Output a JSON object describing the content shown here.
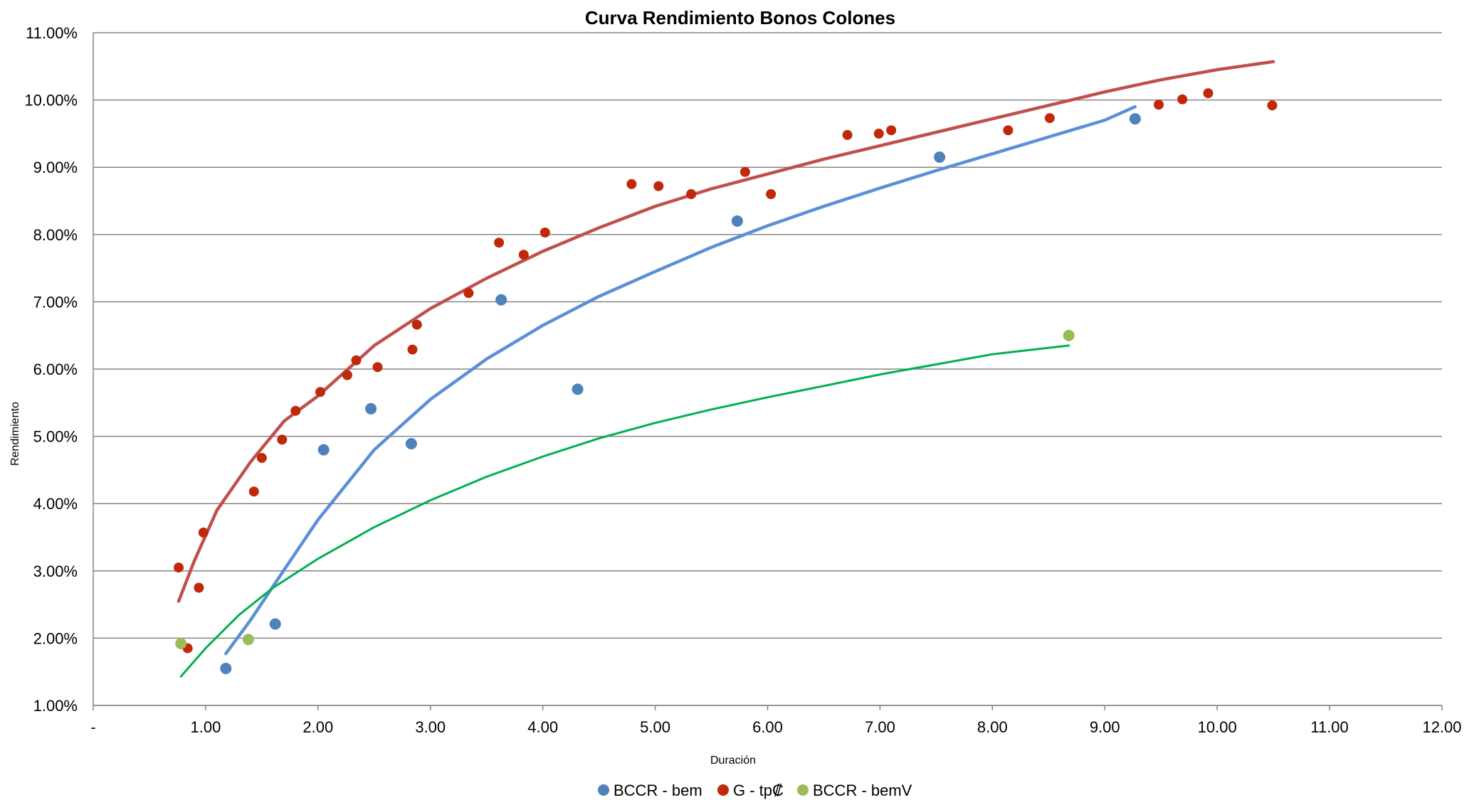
{
  "chart_data": {
    "type": "scatter",
    "title": "Curva Rendimiento Bonos Colones",
    "xlabel": "Duración",
    "ylabel": "Rendimiento",
    "xlim": [
      0,
      12
    ],
    "ylim": [
      0.01,
      0.11
    ],
    "x_ticks": [
      "-",
      "1.00",
      "2.00",
      "3.00",
      "4.00",
      "5.00",
      "6.00",
      "7.00",
      "8.00",
      "9.00",
      "10.00",
      "11.00",
      "12.00"
    ],
    "y_ticks": [
      "1.00%",
      "2.00%",
      "3.00%",
      "4.00%",
      "5.00%",
      "6.00%",
      "7.00%",
      "8.00%",
      "9.00%",
      "10.00%",
      "11.00%"
    ],
    "grid": "horizontal",
    "legend_position": "bottom",
    "series": [
      {
        "name": "BCCR - bem",
        "color": "#4F81BD",
        "trend_color": "#5B8FD6",
        "points": [
          [
            1.18,
            0.0155
          ],
          [
            1.62,
            0.0221
          ],
          [
            2.05,
            0.048
          ],
          [
            2.47,
            0.0541
          ],
          [
            2.83,
            0.0489
          ],
          [
            3.63,
            0.0703
          ],
          [
            4.31,
            0.057
          ],
          [
            5.73,
            0.082
          ],
          [
            7.53,
            0.0915
          ],
          [
            9.27,
            0.0972
          ]
        ],
        "trend": [
          [
            1.18,
            0.0177
          ],
          [
            1.4,
            0.0227
          ],
          [
            1.7,
            0.0302
          ],
          [
            2.0,
            0.0376
          ],
          [
            2.5,
            0.048
          ],
          [
            3.0,
            0.0555
          ],
          [
            3.5,
            0.0615
          ],
          [
            4.0,
            0.0665
          ],
          [
            4.5,
            0.0708
          ],
          [
            5.0,
            0.0745
          ],
          [
            5.5,
            0.0781
          ],
          [
            6.0,
            0.0813
          ],
          [
            6.5,
            0.0842
          ],
          [
            7.0,
            0.0869
          ],
          [
            7.5,
            0.0895
          ],
          [
            8.0,
            0.092
          ],
          [
            8.5,
            0.0945
          ],
          [
            9.0,
            0.097
          ],
          [
            9.27,
            0.099
          ]
        ]
      },
      {
        "name": "G - tp₡",
        "color": "#C0280A",
        "trend_color": "#C0504D",
        "points": [
          [
            0.76,
            0.0305
          ],
          [
            0.84,
            0.0185
          ],
          [
            0.94,
            0.0275
          ],
          [
            0.98,
            0.0357
          ],
          [
            1.43,
            0.0418
          ],
          [
            1.5,
            0.0468
          ],
          [
            1.68,
            0.0495
          ],
          [
            1.8,
            0.0538
          ],
          [
            2.02,
            0.0566
          ],
          [
            2.26,
            0.0591
          ],
          [
            2.34,
            0.0613
          ],
          [
            2.53,
            0.0603
          ],
          [
            2.84,
            0.0629
          ],
          [
            2.88,
            0.0666
          ],
          [
            3.34,
            0.0713
          ],
          [
            3.61,
            0.0788
          ],
          [
            3.83,
            0.077
          ],
          [
            4.02,
            0.0803
          ],
          [
            4.79,
            0.0875
          ],
          [
            5.03,
            0.0872
          ],
          [
            5.32,
            0.086
          ],
          [
            5.8,
            0.0893
          ],
          [
            6.03,
            0.086
          ],
          [
            6.71,
            0.0948
          ],
          [
            6.99,
            0.095
          ],
          [
            7.1,
            0.0955
          ],
          [
            8.14,
            0.0955
          ],
          [
            8.51,
            0.0973
          ],
          [
            9.48,
            0.0993
          ],
          [
            9.69,
            0.1001
          ],
          [
            9.92,
            0.101
          ],
          [
            10.49,
            0.0992
          ]
        ],
        "trend": [
          [
            0.76,
            0.0255
          ],
          [
            0.9,
            0.0315
          ],
          [
            1.1,
            0.039
          ],
          [
            1.4,
            0.0462
          ],
          [
            1.7,
            0.0523
          ],
          [
            2.0,
            0.056
          ],
          [
            2.5,
            0.0635
          ],
          [
            3.0,
            0.069
          ],
          [
            3.5,
            0.0735
          ],
          [
            4.0,
            0.0775
          ],
          [
            4.5,
            0.081
          ],
          [
            5.0,
            0.0842
          ],
          [
            5.5,
            0.0868
          ],
          [
            6.0,
            0.089
          ],
          [
            6.5,
            0.0912
          ],
          [
            7.0,
            0.0932
          ],
          [
            7.5,
            0.0952
          ],
          [
            8.0,
            0.0972
          ],
          [
            8.5,
            0.0992
          ],
          [
            9.0,
            0.1012
          ],
          [
            9.5,
            0.103
          ],
          [
            10.0,
            0.1045
          ],
          [
            10.5,
            0.1057
          ]
        ]
      },
      {
        "name": "BCCR - bemV",
        "color": "#9BBB59",
        "trend_color": "#00B050",
        "points": [
          [
            0.78,
            0.0192
          ],
          [
            1.38,
            0.0198
          ],
          [
            8.68,
            0.065
          ]
        ],
        "trend": [
          [
            0.78,
            0.0143
          ],
          [
            1.0,
            0.0185
          ],
          [
            1.3,
            0.0235
          ],
          [
            1.6,
            0.0275
          ],
          [
            2.0,
            0.0318
          ],
          [
            2.5,
            0.0365
          ],
          [
            3.0,
            0.0405
          ],
          [
            3.5,
            0.044
          ],
          [
            4.0,
            0.047
          ],
          [
            4.5,
            0.0497
          ],
          [
            5.0,
            0.052
          ],
          [
            5.5,
            0.054
          ],
          [
            6.0,
            0.0558
          ],
          [
            6.5,
            0.0575
          ],
          [
            7.0,
            0.0592
          ],
          [
            7.5,
            0.0607
          ],
          [
            8.0,
            0.0622
          ],
          [
            8.68,
            0.0635
          ]
        ]
      }
    ]
  }
}
